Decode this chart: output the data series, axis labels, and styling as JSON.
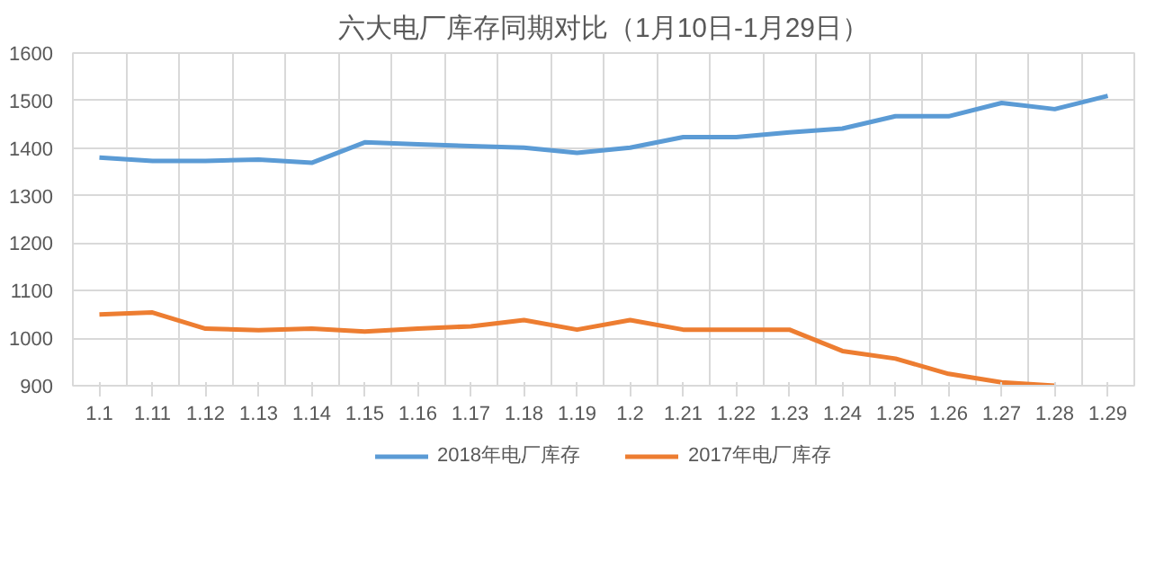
{
  "chart_data": {
    "type": "line",
    "title": "六大电厂库存同期对比（1月10日-1月29日）",
    "categories": [
      "1.1",
      "1.11",
      "1.12",
      "1.13",
      "1.14",
      "1.15",
      "1.16",
      "1.17",
      "1.18",
      "1.19",
      "1.2",
      "1.21",
      "1.22",
      "1.23",
      "1.24",
      "1.25",
      "1.26",
      "1.27",
      "1.28",
      "1.29"
    ],
    "series": [
      {
        "name": "2018年电厂库存",
        "color": "#5b9bd5",
        "values": [
          1380,
          1373,
          1373,
          1376,
          1369,
          1412,
          1408,
          1404,
          1401,
          1390,
          1401,
          1423,
          1423,
          1433,
          1441,
          1467,
          1467,
          1495,
          1482,
          1510
        ]
      },
      {
        "name": "2017年电厂库存",
        "color": "#ed7d31",
        "values": [
          1050,
          1054,
          1020,
          1017,
          1020,
          1014,
          1020,
          1025,
          1038,
          1018,
          1038,
          1018,
          1018,
          1018,
          973,
          957,
          925,
          907,
          900,
          null
        ]
      }
    ],
    "ylim": [
      900,
      1600
    ],
    "yticks": [
      900,
      1000,
      1100,
      1200,
      1300,
      1400,
      1500,
      1600
    ],
    "grid": true,
    "legend": "bottom",
    "marker": "none",
    "line_style": "solid"
  }
}
